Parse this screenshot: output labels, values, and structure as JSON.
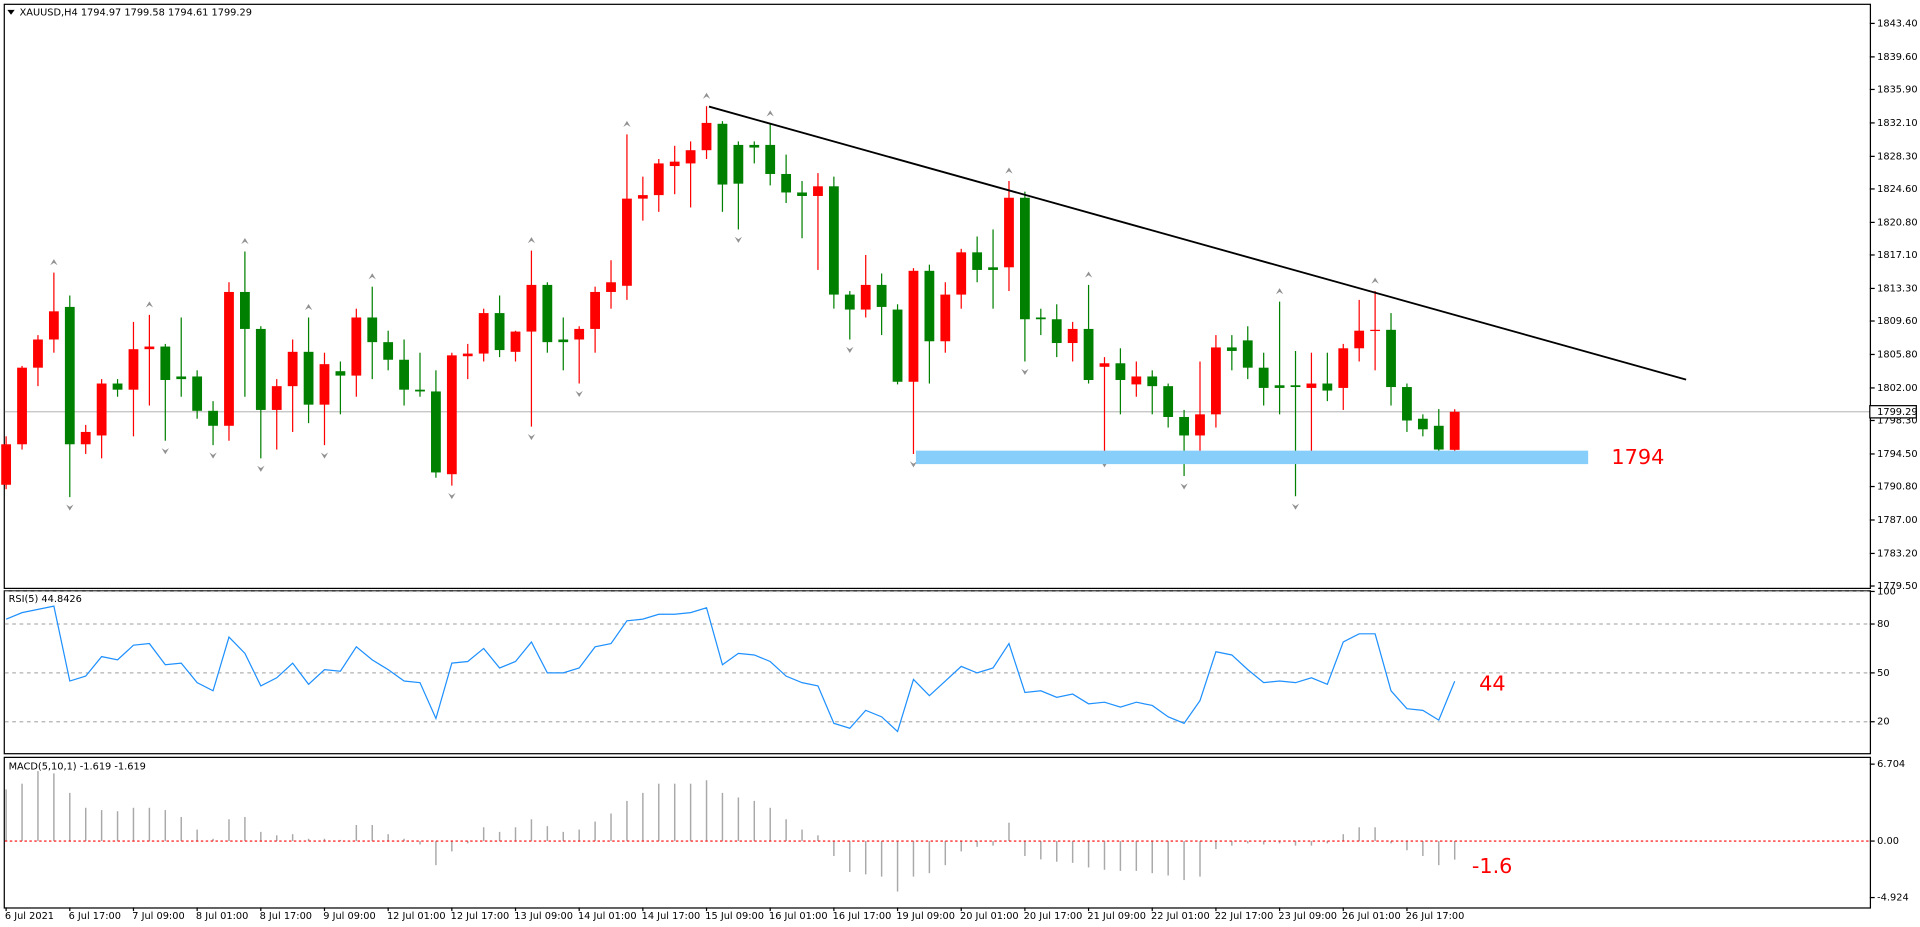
{
  "chart_data": [
    {
      "type": "candlestick",
      "title": "XAUUSD,H4  1794.97 1799.58 1794.61 1799.29",
      "categories": [
        "6 Jul 2021",
        null,
        null,
        null,
        "6 Jul 17:00",
        null,
        null,
        null,
        "7 Jul 09:00",
        null,
        null,
        null,
        "8 Jul 01:00",
        null,
        null,
        null,
        "8 Jul 17:00",
        null,
        null,
        null,
        "9 Jul 09:00",
        null,
        null,
        null,
        "12 Jul 01:00",
        null,
        null,
        null,
        "12 Jul 17:00",
        null,
        null,
        null,
        "13 Jul 09:00",
        null,
        null,
        null,
        "14 Jul 01:00",
        null,
        null,
        null,
        "14 Jul 17:00",
        null,
        null,
        null,
        "15 Jul 09:00",
        null,
        null,
        null,
        "16 Jul 01:00",
        null,
        null,
        null,
        "16 Jul 17:00",
        null,
        null,
        null,
        "19 Jul 09:00",
        null,
        null,
        null,
        "20 Jul 01:00",
        null,
        null,
        null,
        "20 Jul 17:00",
        null,
        null,
        null,
        "21 Jul 09:00",
        null,
        null,
        null,
        "22 Jul 01:00",
        null,
        null,
        null,
        "22 Jul 17:00",
        null,
        null,
        null,
        "23 Jul 09:00",
        null,
        null,
        null,
        "26 Jul 01:00",
        null,
        null,
        null,
        "26 Jul 17:00",
        null,
        null,
        null
      ],
      "open": [
        1791.0,
        1795.6,
        1804.3,
        1807.5,
        1811.2,
        1795.6,
        1796.6,
        1802.5,
        1801.8,
        1806.4,
        1806.7,
        1803.3,
        1803.3,
        1799.4,
        1797.7,
        1812.9,
        1808.7,
        1799.5,
        1802.2,
        1806.1,
        1800.1,
        1803.9,
        1803.4,
        1810.0,
        1807.2,
        1805.2,
        1801.8,
        1801.6,
        1792.2,
        1805.6,
        1805.9,
        1810.5,
        1806.1,
        1808.4,
        1813.7,
        1807.5,
        1807.5,
        1808.7,
        1812.9,
        1813.6,
        1823.5,
        1823.9,
        1827.2,
        1827.5,
        1829.0,
        1832.0,
        1829.6,
        1829.6,
        1829.6,
        1826.3,
        1824.2,
        1823.8,
        1824.9,
        1812.6,
        1810.9,
        1813.7,
        1810.9,
        1802.7,
        1815.3,
        1807.3,
        1812.6,
        1817.4,
        1815.7,
        1815.7,
        1823.6,
        1810.0,
        1809.8,
        1807.1,
        1808.7,
        1804.4,
        1804.8,
        1802.4,
        1803.3,
        1802.2,
        1798.7,
        1796.6,
        1799.0,
        1806.6,
        1807.4,
        1804.3,
        1802.3,
        1802.3,
        1802.0,
        1802.5,
        1802.0,
        1806.5,
        1808.5,
        1808.6,
        1802.1,
        1798.5,
        1797.7,
        1794.97
      ],
      "high": [
        1796.5,
        1804.5,
        1808.0,
        1815.1,
        1812.5,
        1797.8,
        1803.0,
        1803.0,
        1809.5,
        1810.3,
        1807.0,
        1810.0,
        1804.0,
        1800.5,
        1814.0,
        1817.5,
        1809.0,
        1803.0,
        1807.5,
        1810.0,
        1806.0,
        1805.0,
        1811.0,
        1813.5,
        1808.5,
        1807.5,
        1806.0,
        1804.0,
        1806.0,
        1807.0,
        1811.0,
        1812.5,
        1808.5,
        1817.6,
        1814.0,
        1810.0,
        1809.0,
        1813.5,
        1816.5,
        1830.8,
        1826.0,
        1828.0,
        1829.5,
        1830.0,
        1834.0,
        1832.3,
        1830.0,
        1830.0,
        1832.0,
        1828.5,
        1825.5,
        1826.4,
        1826.0,
        1813.0,
        1817.1,
        1815.0,
        1811.5,
        1815.6,
        1816.0,
        1814.0,
        1817.8,
        1819.2,
        1820.0,
        1825.5,
        1824.3,
        1811.0,
        1811.5,
        1809.5,
        1813.7,
        1805.5,
        1806.5,
        1805.0,
        1804.0,
        1802.5,
        1799.5,
        1805.0,
        1808.0,
        1808.0,
        1809.0,
        1806.0,
        1811.8,
        1806.2,
        1806.0,
        1806.0,
        1807.0,
        1812.0,
        1813.0,
        1810.5,
        1802.5,
        1799.0,
        1799.6,
        1799.58
      ],
      "low": [
        1790.5,
        1795.0,
        1802.2,
        1806.0,
        1789.6,
        1794.5,
        1794.0,
        1801.0,
        1796.5,
        1800.0,
        1796.0,
        1801.0,
        1798.5,
        1795.5,
        1796.0,
        1801.0,
        1794.0,
        1795.0,
        1797.0,
        1798.0,
        1795.5,
        1799.0,
        1801.0,
        1803.0,
        1804.0,
        1800.0,
        1801.0,
        1791.8,
        1790.9,
        1803.0,
        1805.0,
        1805.5,
        1805.0,
        1797.6,
        1806.0,
        1804.0,
        1802.5,
        1806.0,
        1811.0,
        1812.0,
        1821.0,
        1822.0,
        1824.0,
        1822.5,
        1828.0,
        1822.0,
        1820.0,
        1827.5,
        1825.0,
        1823.0,
        1819.0,
        1815.4,
        1811.0,
        1807.5,
        1810.0,
        1808.0,
        1802.4,
        1794.5,
        1802.5,
        1806.0,
        1811.0,
        1814.0,
        1811.0,
        1813.0,
        1805.0,
        1808.0,
        1805.5,
        1805.0,
        1802.5,
        1794.5,
        1799.0,
        1801.0,
        1799.0,
        1797.5,
        1792.0,
        1794.3,
        1797.5,
        1804.0,
        1803.0,
        1800.0,
        1799.0,
        1789.7,
        1794.5,
        1800.5,
        1799.5,
        1805.0,
        1804.0,
        1800.0,
        1797.0,
        1796.5,
        1794.7,
        1794.61
      ],
      "close": [
        1795.6,
        1804.3,
        1807.5,
        1810.7,
        1795.6,
        1797.0,
        1802.5,
        1801.8,
        1806.4,
        1806.7,
        1802.9,
        1803.0,
        1799.4,
        1797.7,
        1812.9,
        1808.7,
        1799.5,
        1802.2,
        1806.1,
        1800.1,
        1804.7,
        1803.4,
        1810.0,
        1807.2,
        1805.2,
        1801.8,
        1801.6,
        1792.4,
        1805.7,
        1805.9,
        1810.5,
        1806.3,
        1808.4,
        1813.7,
        1807.2,
        1807.2,
        1808.7,
        1812.9,
        1814.0,
        1823.5,
        1823.9,
        1827.5,
        1827.7,
        1829.0,
        1832.1,
        1825.1,
        1825.2,
        1829.3,
        1826.3,
        1824.2,
        1823.8,
        1824.9,
        1812.6,
        1810.9,
        1813.7,
        1811.2,
        1802.7,
        1815.3,
        1807.3,
        1812.6,
        1817.4,
        1815.4,
        1815.4,
        1823.6,
        1809.8,
        1809.8,
        1807.1,
        1808.7,
        1802.9,
        1804.8,
        1802.9,
        1803.3,
        1802.2,
        1798.7,
        1796.6,
        1799.0,
        1806.6,
        1806.2,
        1804.3,
        1802.0,
        1802.0,
        1802.1,
        1802.5,
        1801.7,
        1806.5,
        1808.5,
        1808.6,
        1802.1,
        1798.3,
        1797.3,
        1795.0,
        1799.29
      ],
      "up_color": "#ff0000",
      "down_color": "#008000",
      "ylim": [
        1779.3,
        1845.5
      ],
      "yticks": [
        {
          "value": 1843.4,
          "label": "1843.40"
        },
        {
          "value": 1839.6,
          "label": "1839.60"
        },
        {
          "value": 1835.9,
          "label": "1835.90"
        },
        {
          "value": 1832.1,
          "label": "1832.10"
        },
        {
          "value": 1828.3,
          "label": "1828.30"
        },
        {
          "value": 1824.6,
          "label": "1824.60"
        },
        {
          "value": 1820.8,
          "label": "1820.80"
        },
        {
          "value": 1817.1,
          "label": "1817.10"
        },
        {
          "value": 1813.3,
          "label": "1813.30"
        },
        {
          "value": 1809.6,
          "label": "1809.60"
        },
        {
          "value": 1805.8,
          "label": "1805.80"
        },
        {
          "value": 1802,
          "label": "1802.00"
        },
        {
          "value": 1798.3,
          "label": "1798.30"
        },
        {
          "value": 1794.5,
          "label": "1794.50"
        },
        {
          "value": 1790.8,
          "label": "1790.80"
        },
        {
          "value": 1787,
          "label": "1787.00"
        },
        {
          "value": 1783.2,
          "label": "1783.20"
        },
        {
          "value": 1779.5,
          "label": "1779.50"
        }
      ],
      "last_price": {
        "value": 1799.29,
        "label": "1799.29"
      },
      "annotation": "1794"
    },
    {
      "type": "line",
      "title": "RSI(5) 44.8426",
      "values": [
        83,
        87,
        89,
        91,
        45,
        48,
        60,
        58,
        67,
        68,
        55,
        56,
        44,
        39,
        72,
        62,
        42,
        47,
        56,
        43,
        52,
        51,
        66,
        58,
        52,
        45,
        44,
        22,
        56,
        57,
        65,
        53,
        57,
        69,
        50,
        50,
        53,
        66,
        68,
        82,
        83,
        86,
        86,
        87,
        90,
        55,
        62,
        61,
        57,
        48,
        44,
        42,
        19,
        16,
        27,
        23,
        14,
        46,
        36,
        45,
        54,
        50,
        53,
        68,
        38,
        39,
        35,
        37,
        31,
        32,
        29,
        32,
        30,
        23,
        19,
        33,
        63,
        61,
        52,
        44,
        45,
        44,
        47,
        43,
        69,
        74,
        74,
        39,
        28,
        27,
        21,
        44.8426
      ],
      "color": "#1e90ff",
      "ylim": [
        0,
        100
      ],
      "yticks": [
        100,
        80,
        50,
        20
      ],
      "grid": true,
      "annotation": "44"
    },
    {
      "type": "bar",
      "title": "MACD(5,10,1) -1.619 -1.619",
      "values": [
        4.5,
        5.0,
        6.1,
        5.9,
        4.2,
        2.9,
        2.7,
        2.6,
        2.9,
        2.9,
        2.7,
        2.1,
        1.0,
        0.2,
        1.9,
        2.1,
        0.8,
        0.5,
        0.6,
        0.2,
        0.2,
        0.1,
        1.4,
        1.4,
        0.6,
        0.2,
        -0.3,
        -2.1,
        -0.9,
        -0.2,
        1.2,
        0.8,
        1.2,
        1.9,
        1.3,
        0.8,
        1.0,
        1.7,
        2.4,
        3.5,
        4.2,
        5.0,
        5.0,
        5.0,
        5.3,
        4.2,
        3.8,
        3.5,
        2.9,
        1.9,
        1.0,
        0.5,
        -1.3,
        -2.7,
        -2.9,
        -3.1,
        -4.4,
        -3.1,
        -2.8,
        -2.1,
        -0.9,
        -0.5,
        -0.4,
        1.6,
        -1.3,
        -1.6,
        -1.8,
        -1.9,
        -2.3,
        -2.5,
        -2.6,
        -2.6,
        -2.8,
        -3.0,
        -3.4,
        -3.1,
        -0.7,
        -0.4,
        -0.2,
        -0.3,
        -0.2,
        -0.4,
        -0.4,
        -0.2,
        0.6,
        1.2,
        1.2,
        -0.2,
        -0.8,
        -1.3,
        -2.1,
        -1.619
      ],
      "color": "#a9a9a9",
      "zero_line_color": "#ff0000",
      "ylim": [
        -5.78,
        7.24
      ],
      "yticks": [
        6.704,
        {
          "value": 0,
          "label": "0.00"
        },
        -4.924
      ],
      "annotation": "-1.6"
    }
  ]
}
